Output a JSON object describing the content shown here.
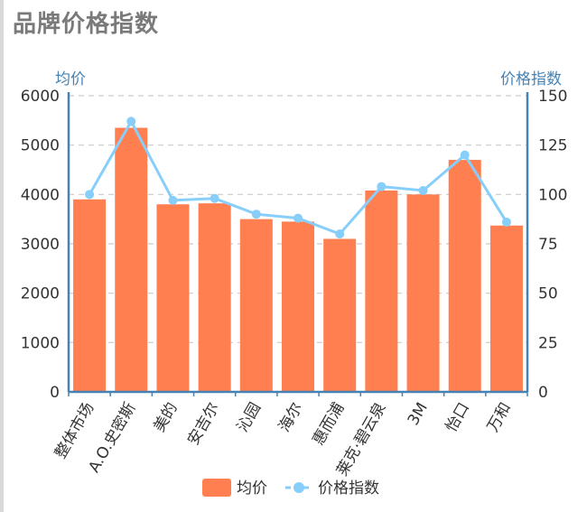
{
  "page": {
    "title": "品牌价格指数"
  },
  "chart_data": {
    "type": "bar",
    "categories": [
      "整体市场",
      "A.O.史密斯",
      "美的",
      "安吉尔",
      "沁园",
      "海尔",
      "惠而浦",
      "莱克·碧云泉",
      "3M",
      "怡口",
      "万和"
    ],
    "series": [
      {
        "name": "均价",
        "type": "bar",
        "axis": "left",
        "values": [
          3900,
          5350,
          3800,
          3820,
          3500,
          3450,
          3100,
          4080,
          4000,
          4700,
          3370
        ]
      },
      {
        "name": "价格指数",
        "type": "line",
        "axis": "right",
        "values": [
          100,
          137,
          97,
          98,
          90,
          88,
          80,
          104,
          102,
          120,
          86
        ]
      }
    ],
    "yaxis_left": {
      "title": "均价",
      "min": 0,
      "max": 6000,
      "ticks": [
        0,
        1000,
        2000,
        3000,
        4000,
        5000,
        6000
      ]
    },
    "yaxis_right": {
      "title": "价格指数",
      "min": 0,
      "max": 150,
      "ticks": [
        0,
        25,
        50,
        75,
        100,
        125,
        150
      ]
    },
    "grid": "dashed-horizontal",
    "legend": "bottom-center",
    "colors": {
      "bar": "#ff7f50",
      "line": "#87cefa",
      "axis": "#4682b4",
      "grid": "#cccccc",
      "text": "#333333"
    }
  }
}
